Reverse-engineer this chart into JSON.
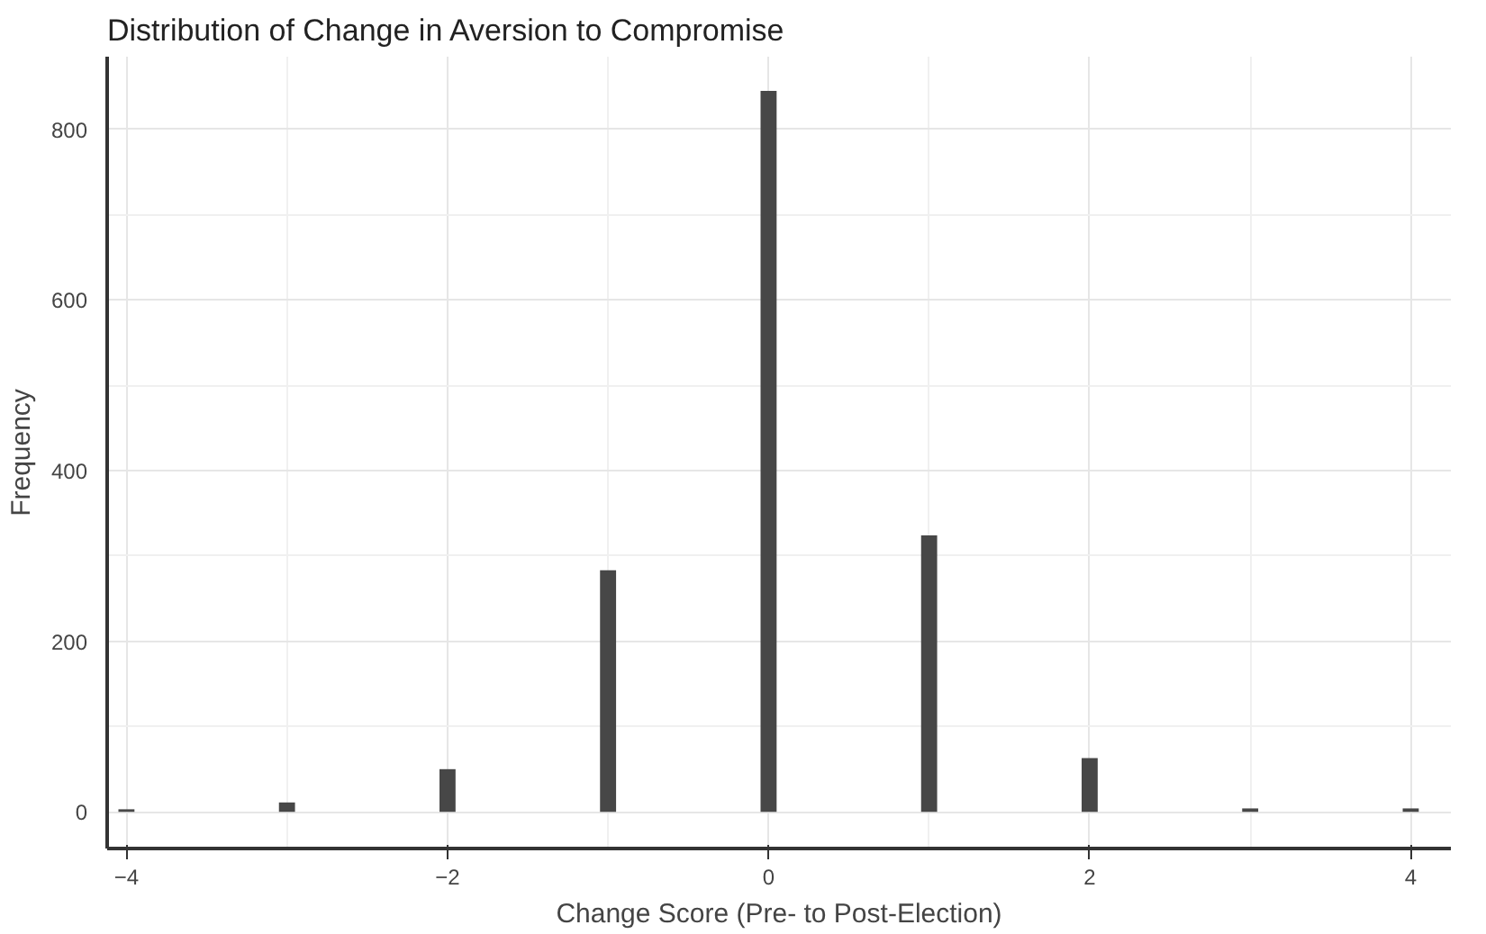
{
  "chart_data": {
    "type": "histogram",
    "title": "Distribution of Change in Aversion to Compromise",
    "xlabel": "Change Score (Pre- to Post-Election)",
    "ylabel": "Frequency",
    "bins": [
      -4.05,
      -3.95,
      -3.05,
      -2.95,
      -2.05,
      -1.95,
      -1.05,
      -0.95,
      -0.05,
      0.05,
      0.95,
      1.05,
      1.95,
      2.05,
      2.95,
      3.05,
      3.95,
      4.05
    ],
    "values": [
      3,
      0,
      11,
      0,
      50,
      0,
      283,
      0,
      845,
      0,
      324,
      0,
      63,
      0,
      4,
      0,
      4
    ],
    "color": "#474747",
    "xlim": [
      -4.12,
      4.25
    ],
    "ylim": [
      -43,
      885
    ],
    "xticks": [
      -4,
      -2,
      0,
      2,
      4
    ],
    "yticks": [
      0,
      200,
      400,
      600,
      800
    ],
    "grid": true
  }
}
